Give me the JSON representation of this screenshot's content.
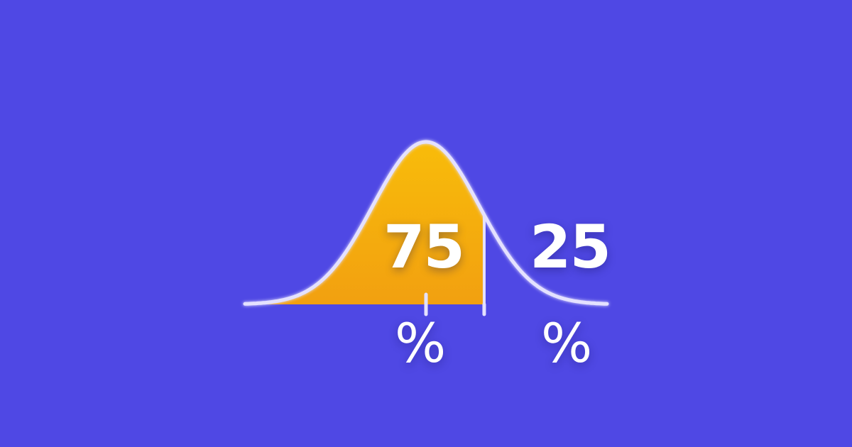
{
  "colors": {
    "background": "#4F48E4",
    "fill_top": "#F8BC0A",
    "fill_bottom": "#F2A010",
    "curve_stroke": "#E4E1FF",
    "text": "#FFFFFF"
  },
  "distribution": {
    "left_share_percent": 75,
    "right_share_percent": 25
  },
  "labels": {
    "left_value": "75",
    "left_unit": "%",
    "right_value": "25",
    "right_unit": "%"
  }
}
